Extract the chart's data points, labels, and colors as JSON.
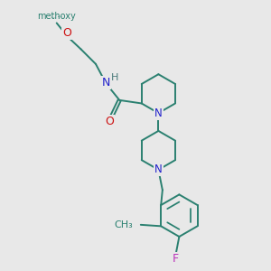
{
  "bg_color": "#e8e8e8",
  "bond_color": "#2a8070",
  "N_color": "#2222cc",
  "O_color": "#cc1111",
  "F_color": "#bb33bb",
  "H_color": "#4a7a7a",
  "line_width": 1.4,
  "font_size": 8.5,
  "figsize": [
    3.0,
    3.0
  ],
  "dpi": 100,
  "methoxy_label": "methoxy",
  "O_label": "O",
  "N_label": "N",
  "H_label": "H",
  "F_label": "F"
}
